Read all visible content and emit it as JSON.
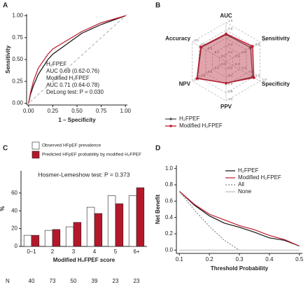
{
  "chart_data": [
    {
      "type": "line",
      "panel": "A",
      "xlabel": "1 – Specificity",
      "ylabel": "Sensitivity",
      "x": [
        0,
        0.02,
        0.05,
        0.1,
        0.2,
        0.25,
        0.4,
        0.55,
        0.75,
        1
      ],
      "series": [
        {
          "name": "H₂FPEF",
          "color": "#111111",
          "note": "AUC 0.69 (0.62-0.76)",
          "values": [
            0,
            0.1,
            0.2,
            0.33,
            0.5,
            0.56,
            0.68,
            0.8,
            0.9,
            1
          ]
        },
        {
          "name": "Modified H₂FPEF",
          "color": "#c0172c",
          "note": "AUC 0.71 (0.64-0.78)",
          "values": [
            0,
            0.12,
            0.25,
            0.4,
            0.56,
            0.62,
            0.72,
            0.82,
            0.92,
            1
          ]
        }
      ],
      "annotation": "DeLong test: P = 0.030",
      "legend": "inline",
      "diagonal": true,
      "xlim": [
        -0.02,
        1.02
      ],
      "ylim": [
        -0.02,
        1.02
      ],
      "xticks": [
        {
          "value": 0,
          "label": "0.00"
        },
        0.25,
        {
          "value": 0.5,
          "label": "0.50"
        },
        0.75,
        {
          "value": 1,
          "label": "1.00"
        }
      ],
      "yticks": [
        {
          "value": 0,
          "label": "0.00"
        },
        0.25,
        {
          "value": 0.5,
          "label": "0.50"
        },
        0.75,
        {
          "value": 1,
          "label": "1.00"
        }
      ]
    },
    {
      "type": "radar",
      "panel": "B",
      "categories": [
        "AUC",
        "Sensitivity",
        "Specificity",
        "PPV",
        "NPV",
        "Accuracy"
      ],
      "series": [
        {
          "name": "H₂FPEF",
          "color": "#555555",
          "values": [
            0.69,
            0.72,
            0.78,
            0.55,
            0.85,
            0.73
          ]
        },
        {
          "name": "Modified H₂FPEF",
          "color": "#c0172c",
          "values": [
            0.71,
            0.78,
            0.82,
            0.55,
            0.86,
            0.75
          ]
        }
      ],
      "rlim": [
        0,
        1
      ],
      "rticks": [
        0.2,
        0.4,
        0.6,
        0.8,
        {
          "value": 1,
          "label": "1.0"
        }
      ],
      "grid": true
    },
    {
      "type": "bar",
      "panel": "C",
      "xlabel": "Modified H₂FPEF score",
      "ylabel": "%",
      "categories": [
        "0–1",
        "2",
        "3",
        "4",
        "5",
        "6+"
      ],
      "series": [
        {
          "name": "Observed HFpEF prevalence",
          "color": "#ffffff",
          "values": [
            12.5,
            18,
            22,
            44,
            57,
            57
          ]
        },
        {
          "name": "Predicted HFpEF probability by modified H₂FPEF",
          "color": "#b5172a",
          "values": [
            12.5,
            19,
            27,
            37,
            48,
            66
          ]
        }
      ],
      "annotation": "Hosmer-Lemeshow test: P = 0.373",
      "n_label": "N",
      "n": [
        40,
        73,
        50,
        39,
        23,
        23
      ],
      "ylim": [
        0,
        85
      ],
      "yticks": [
        0,
        20,
        40,
        60
      ]
    },
    {
      "type": "line",
      "panel": "D",
      "xlabel": "Threshold Probability",
      "ylabel": "Net Benefit",
      "x": [
        0.1,
        0.15,
        0.2,
        0.25,
        0.3,
        0.35,
        0.4,
        0.45,
        0.5
      ],
      "series": [
        {
          "name": "H₂FPEF",
          "color": "#111111",
          "values": [
            0.72,
            0.55,
            0.42,
            0.33,
            0.28,
            0.22,
            0.15,
            0.12,
            0.05
          ]
        },
        {
          "name": "Modified H₂FPEF",
          "color": "#c0172c",
          "values": [
            0.72,
            0.56,
            0.44,
            0.37,
            0.3,
            0.25,
            0.18,
            0.13,
            0.05
          ]
        },
        {
          "name": "All",
          "color": "#888888",
          "dash": "dotted",
          "values": [
            0.72,
            0.49,
            0.29,
            0.12,
            0,
            null,
            null,
            null,
            null
          ]
        },
        {
          "name": "None",
          "color": "#bbbbbb",
          "values": [
            0,
            0,
            0,
            0,
            0,
            0,
            0,
            0,
            0
          ]
        }
      ],
      "legend": "upper right",
      "xlim": [
        0.09,
        0.51
      ],
      "ylim": [
        -0.04,
        1.04
      ],
      "xticks": [
        0.1,
        0.2,
        0.3,
        0.4,
        0.5
      ],
      "yticks": [
        {
          "value": 0,
          "label": "0.0"
        },
        0.2,
        0.4,
        0.6,
        0.8,
        {
          "value": 1,
          "label": "1.0"
        }
      ]
    }
  ]
}
